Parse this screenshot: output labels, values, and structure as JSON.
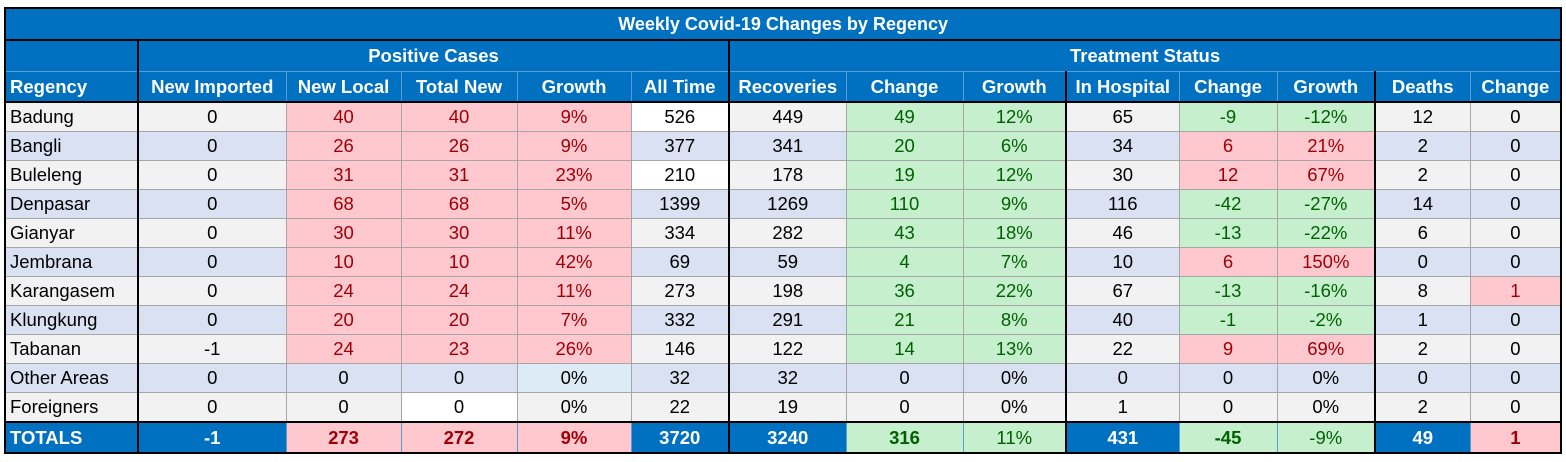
{
  "title": "Weekly Covid-19 Changes by Regency",
  "groups": {
    "positive": "Positive Cases",
    "treatment": "Treatment Status"
  },
  "columns": [
    "Regency",
    "New Imported",
    "New Local",
    "Total New",
    "Growth",
    "All Time",
    "Recoveries",
    "Change",
    "Growth",
    "In Hospital",
    "Change",
    "Growth",
    "Deaths",
    "Change"
  ],
  "rows": [
    [
      "Badung",
      "0",
      "40",
      "40",
      "9%",
      "526",
      "449",
      "49",
      "12%",
      "65",
      "-9",
      "-12%",
      "12",
      "0"
    ],
    [
      "Bangli",
      "0",
      "26",
      "26",
      "9%",
      "377",
      "341",
      "20",
      "6%",
      "34",
      "6",
      "21%",
      "2",
      "0"
    ],
    [
      "Buleleng",
      "0",
      "31",
      "31",
      "23%",
      "210",
      "178",
      "19",
      "12%",
      "30",
      "12",
      "67%",
      "2",
      "0"
    ],
    [
      "Denpasar",
      "0",
      "68",
      "68",
      "5%",
      "1399",
      "1269",
      "110",
      "9%",
      "116",
      "-42",
      "-27%",
      "14",
      "0"
    ],
    [
      "Gianyar",
      "0",
      "30",
      "30",
      "11%",
      "334",
      "282",
      "43",
      "18%",
      "46",
      "-13",
      "-22%",
      "6",
      "0"
    ],
    [
      "Jembrana",
      "0",
      "10",
      "10",
      "42%",
      "69",
      "59",
      "4",
      "7%",
      "10",
      "6",
      "150%",
      "0",
      "0"
    ],
    [
      "Karangasem",
      "0",
      "24",
      "24",
      "11%",
      "273",
      "198",
      "36",
      "22%",
      "67",
      "-13",
      "-16%",
      "8",
      "1"
    ],
    [
      "Klungkung",
      "0",
      "20",
      "20",
      "7%",
      "332",
      "291",
      "21",
      "8%",
      "40",
      "-1",
      "-2%",
      "1",
      "0"
    ],
    [
      "Tabanan",
      "-1",
      "24",
      "23",
      "26%",
      "146",
      "122",
      "14",
      "13%",
      "22",
      "9",
      "69%",
      "2",
      "0"
    ],
    [
      "Other Areas",
      "0",
      "0",
      "0",
      "0%",
      "32",
      "32",
      "0",
      "0%",
      "0",
      "0",
      "0%",
      "0",
      "0"
    ],
    [
      "Foreigners",
      "0",
      "0",
      "0",
      "0%",
      "22",
      "19",
      "0",
      "0%",
      "1",
      "0",
      "0%",
      "2",
      "0"
    ]
  ],
  "totals": [
    "TOTALS",
    "-1",
    "273",
    "272",
    "9%",
    "3720",
    "3240",
    "316",
    "11%",
    "431",
    "-45",
    "-9%",
    "49",
    "1"
  ],
  "colors": {
    "header_blue": "#0070c0",
    "negative_fill": "#ffc7ce",
    "negative_text": "#9c0006",
    "positive_fill": "#c6efce",
    "positive_text": "#006100",
    "band_gray": "#f2f2f2",
    "band_blue": "#d9e1f2"
  }
}
